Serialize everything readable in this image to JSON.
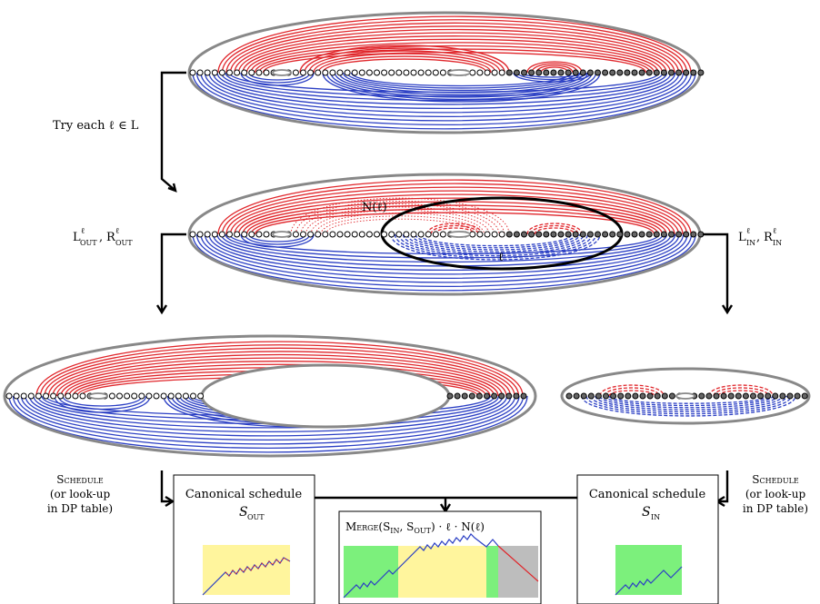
{
  "labels": {
    "try_each": "Try each ℓ ∈ L",
    "n_ell": "N(ℓ)",
    "ell": "ℓ",
    "out_left": "L",
    "out_sup": "ℓ",
    "out_sub": "OUT",
    "out_R": "R",
    "in_L": "L",
    "in_sub": "IN",
    "schedule": "Schedule",
    "or_lookup": "(or look-up",
    "in_dp": "in DP table)"
  },
  "boxes": {
    "left_title": "Canonical schedule",
    "left_sym": "S",
    "left_sub": "OUT",
    "right_title": "Canonical schedule",
    "right_sym": "S",
    "right_sub": "IN",
    "merge_title": "Merge(S",
    "merge_in": "IN",
    "merge_mid": ", S",
    "merge_out": "OUT",
    "merge_tail": ") · ℓ · N(ℓ)"
  },
  "colors": {
    "red": "#e0262b",
    "blue": "#2b3fc4",
    "gray": "#888888",
    "yellow": "#fff59d",
    "green": "#7cf07c",
    "shade": "#bdbdbd"
  }
}
